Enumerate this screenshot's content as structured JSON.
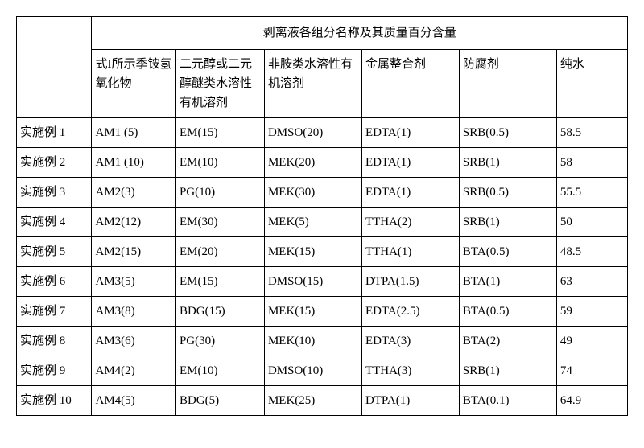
{
  "table": {
    "border_color": "#000000",
    "background_color": "#ffffff",
    "font_family": "SimSun",
    "font_size_pt": 11,
    "header_main": "剥离液各组分名称及其质量百分含量",
    "subheaders": [
      "式I所示季铵氢氧化物",
      "二元醇或二元醇醚类水溶性有机溶剂",
      "非胺类水溶性有机溶剂",
      "金属整合剂",
      "防腐剂",
      "纯水"
    ],
    "rows": [
      {
        "label": "实施例 1",
        "cells": [
          "AM1 (5)",
          "EM(15)",
          "DMSO(20)",
          "EDTA(1)",
          "SRB(0.5)",
          "58.5"
        ]
      },
      {
        "label": "实施例 2",
        "cells": [
          "AM1 (10)",
          "EM(10)",
          "MEK(20)",
          "EDTA(1)",
          "SRB(1)",
          "58"
        ]
      },
      {
        "label": "实施例 3",
        "cells": [
          "AM2(3)",
          "PG(10)",
          "MEK(30)",
          "EDTA(1)",
          "SRB(0.5)",
          "55.5"
        ]
      },
      {
        "label": "实施例 4",
        "cells": [
          "AM2(12)",
          "EM(30)",
          "MEK(5)",
          "TTHA(2)",
          "SRB(1)",
          "50"
        ]
      },
      {
        "label": "实施例 5",
        "cells": [
          "AM2(15)",
          "EM(20)",
          "MEK(15)",
          "TTHA(1)",
          "BTA(0.5)",
          "48.5"
        ]
      },
      {
        "label": "实施例 6",
        "cells": [
          "AM3(5)",
          "EM(15)",
          "DMSO(15)",
          "DTPA(1.5)",
          "BTA(1)",
          "63"
        ]
      },
      {
        "label": "实施例 7",
        "cells": [
          "AM3(8)",
          "BDG(15)",
          "MEK(15)",
          "EDTA(2.5)",
          "BTA(0.5)",
          "59"
        ]
      },
      {
        "label": "实施例 8",
        "cells": [
          "AM3(6)",
          "PG(30)",
          "MEK(10)",
          "EDTA(3)",
          "BTA(2)",
          "49"
        ]
      },
      {
        "label": "实施例 9",
        "cells": [
          "AM4(2)",
          "EM(10)",
          "DMSO(10)",
          "TTHA(3)",
          "SRB(1)",
          "74"
        ]
      },
      {
        "label": "实施例 10",
        "cells": [
          "AM4(5)",
          "BDG(5)",
          "MEK(25)",
          "DTPA(1)",
          "BTA(0.1)",
          "64.9"
        ]
      }
    ]
  }
}
